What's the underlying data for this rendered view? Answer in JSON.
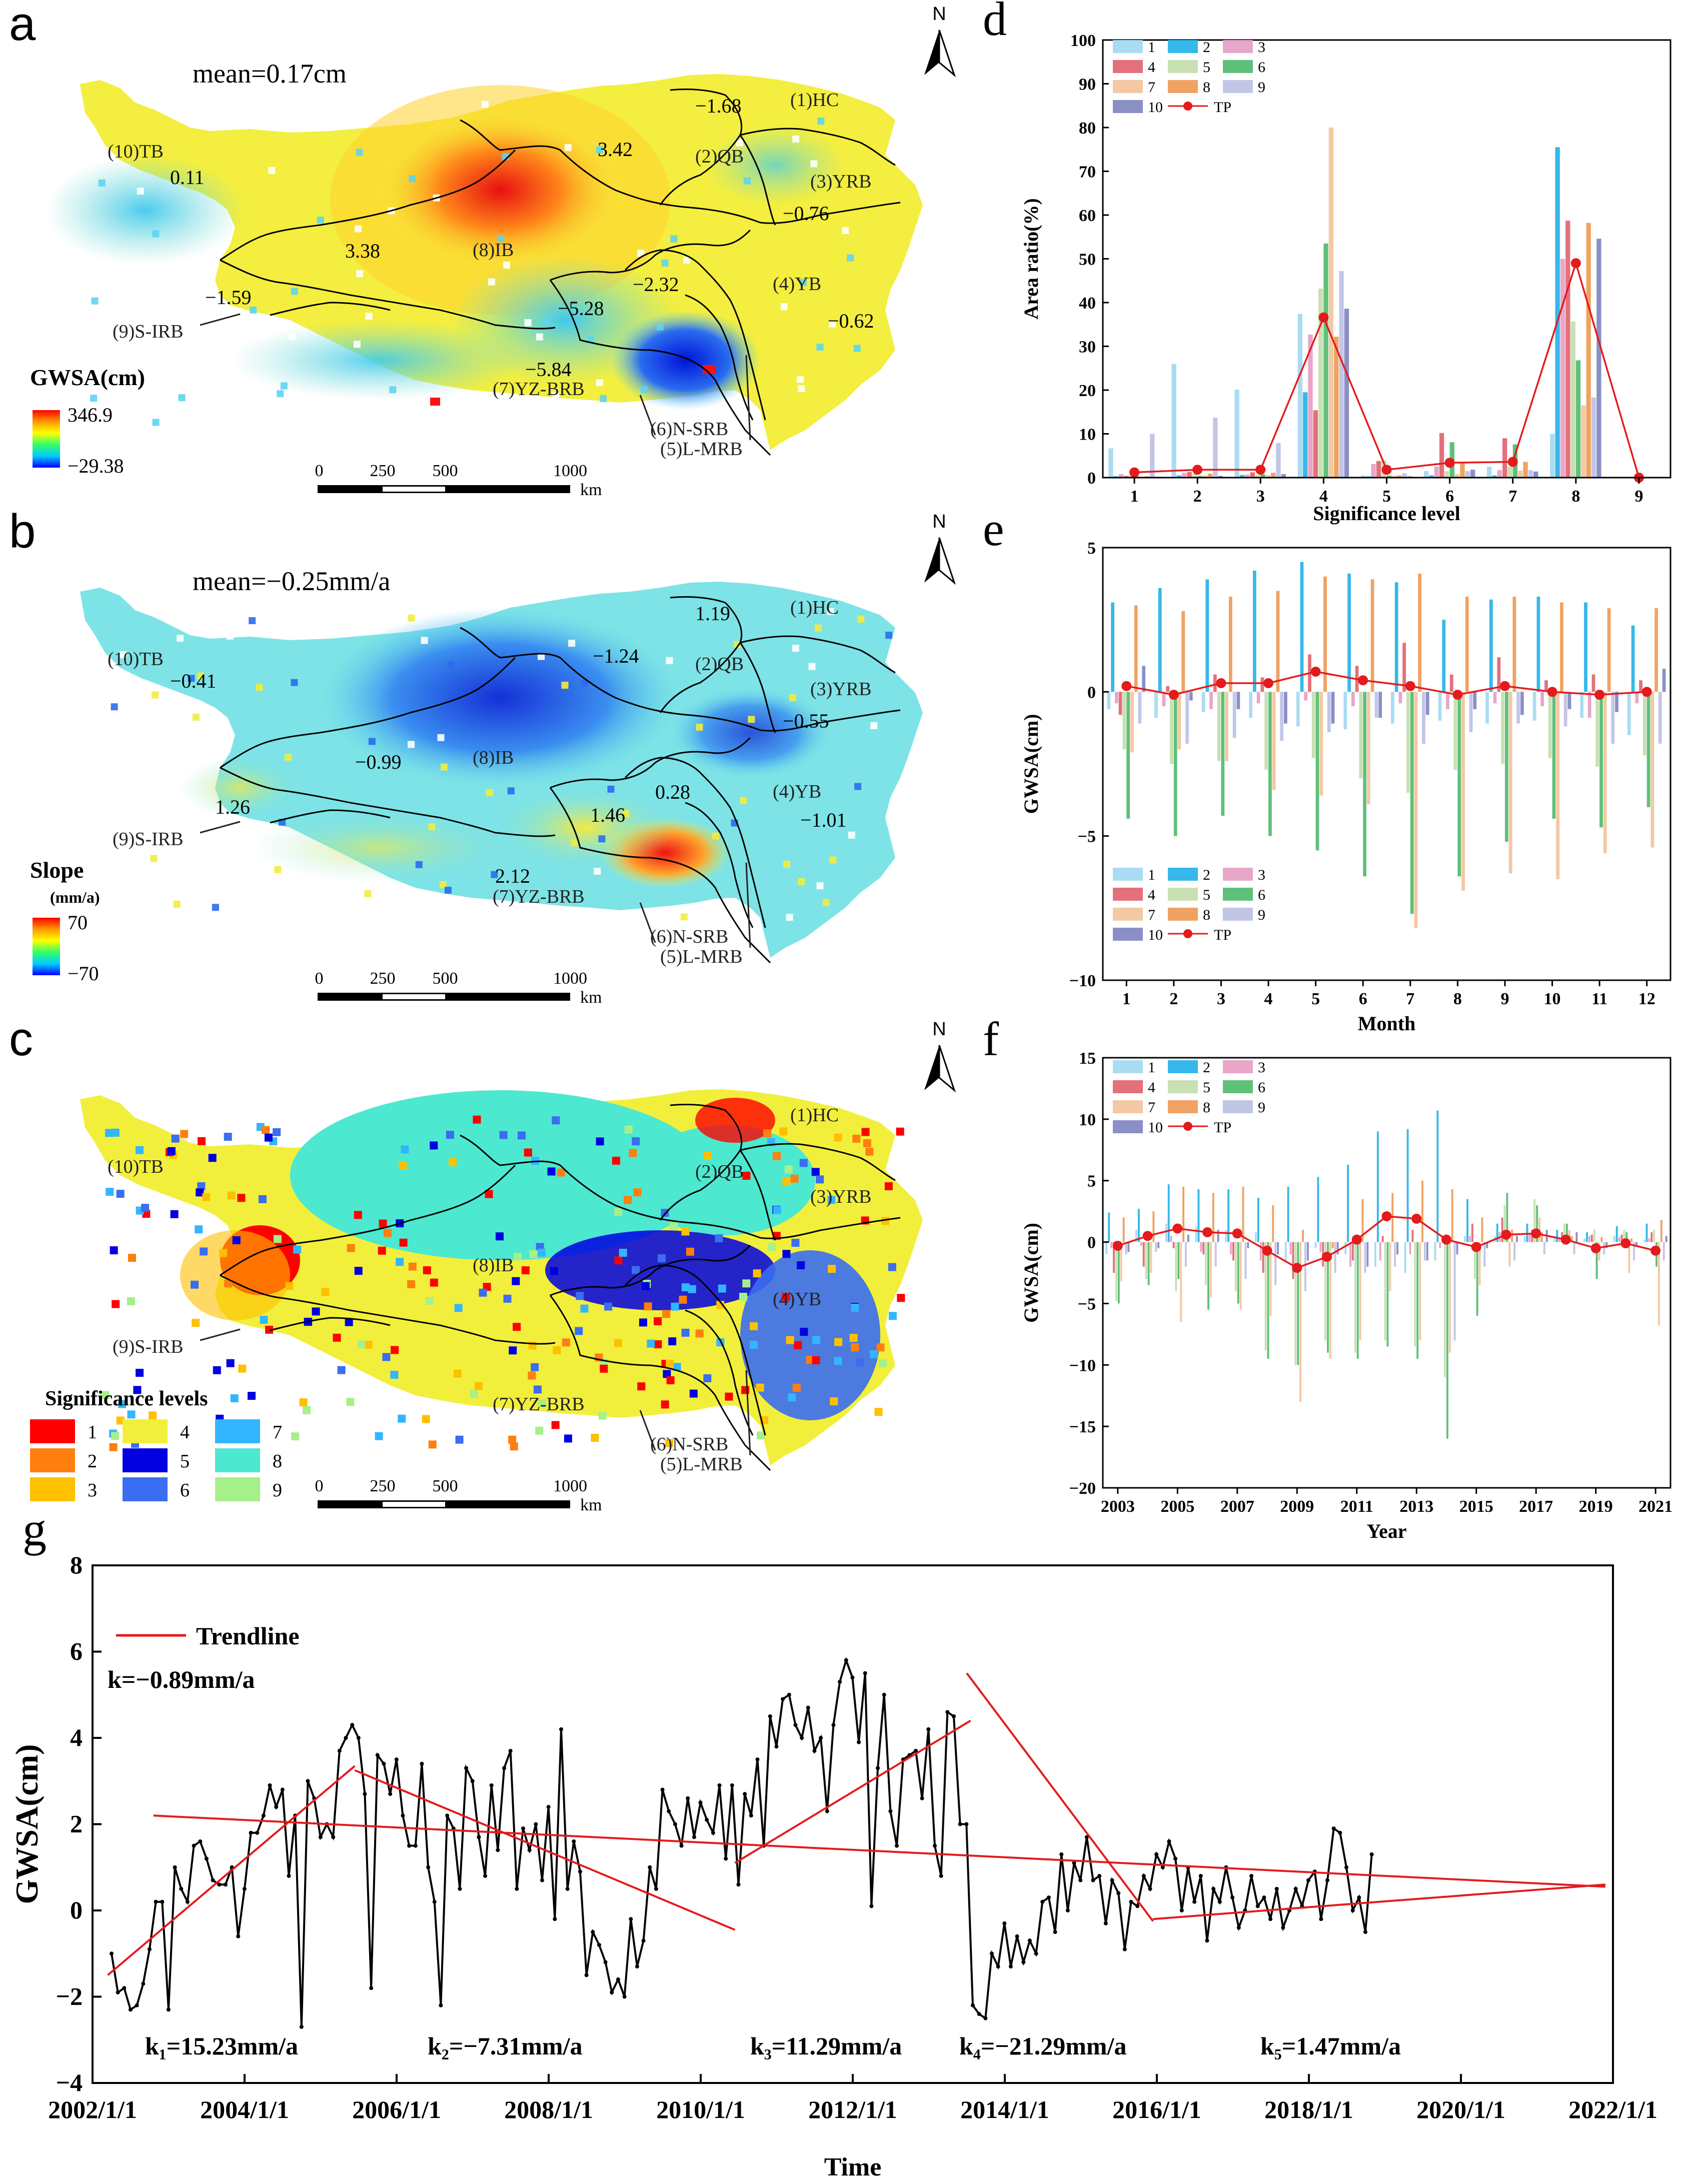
{
  "panels": {
    "a": {
      "letter": "a",
      "mean": "mean=0.17cm",
      "legend_title": "GWSA(cm)",
      "legend_max": "346.9",
      "legend_min": "−29.38",
      "values": [
        "−1.68",
        "0.11",
        "3.42",
        "3.38",
        "−0.76",
        "−1.59",
        "−2.32",
        "−5.28",
        "−0.62",
        "−5.84"
      ]
    },
    "b": {
      "letter": "b",
      "mean": "mean=−0.25mm/a",
      "legend_title": "Slope",
      "legend_unit": "(mm/a)",
      "legend_max": "70",
      "legend_min": "−70",
      "values": [
        "1.19",
        "−0.41",
        "−1.24",
        "−0.55",
        "−0.99",
        "1.26",
        "1.46",
        "0.28",
        "−1.01",
        "2.12"
      ]
    },
    "c": {
      "letter": "c",
      "legend_title": "Significance levels",
      "levels": [
        {
          "label": "1",
          "color": "#ff0000"
        },
        {
          "label": "2",
          "color": "#ff7f0e"
        },
        {
          "label": "3",
          "color": "#ffc000"
        },
        {
          "label": "4",
          "color": "#f2ef3c"
        },
        {
          "label": "5",
          "color": "#0000e0"
        },
        {
          "label": "6",
          "color": "#3a6df0"
        },
        {
          "label": "7",
          "color": "#33b5ff"
        },
        {
          "label": "8",
          "color": "#4de8d0"
        },
        {
          "label": "9",
          "color": "#a6f08a"
        }
      ]
    }
  },
  "map_common": {
    "north": "N",
    "scale_ticks": [
      "0",
      "250",
      "500",
      "1000"
    ],
    "scale_unit": "km",
    "regions": [
      "(1)HC",
      "(2)QB",
      "(3)YRB",
      "(4)YB",
      "(5)L-MRB",
      "(6)N-SRB",
      "(7)YZ-BRB",
      "(8)IB",
      "(9)S-IRB",
      "(10)TB"
    ]
  },
  "legend_series": [
    {
      "name": "1",
      "color": "#a9dcf2"
    },
    {
      "name": "2",
      "color": "#36b8ea"
    },
    {
      "name": "3",
      "color": "#e8a6c9"
    },
    {
      "name": "4",
      "color": "#e3707a"
    },
    {
      "name": "5",
      "color": "#c8e0b2"
    },
    {
      "name": "6",
      "color": "#5fc07a"
    },
    {
      "name": "7",
      "color": "#f3c8a3"
    },
    {
      "name": "8",
      "color": "#f0a262"
    },
    {
      "name": "9",
      "color": "#c2c6e6"
    },
    {
      "name": "10",
      "color": "#8a8fc6"
    },
    {
      "name": "TP",
      "color": "#e41a1c"
    }
  ],
  "chart_data": [
    {
      "id": "d",
      "type": "bar",
      "letter": "d",
      "xlabel": "Significance level",
      "ylabel": "Area ratio(%)",
      "categories": [
        "1",
        "2",
        "3",
        "4",
        "5",
        "6",
        "7",
        "8",
        "9"
      ],
      "ylim": [
        0,
        100
      ],
      "yticks": [
        "0",
        "10",
        "20",
        "30",
        "40",
        "50",
        "60",
        "70",
        "80",
        "90",
        "100"
      ],
      "series": [
        {
          "name": "1",
          "values": [
            6.7,
            26,
            20.1,
            37.4,
            0.5,
            1.5,
            2.5,
            10,
            0
          ]
        },
        {
          "name": "2",
          "values": [
            0.3,
            0.5,
            0.6,
            19.5,
            0.3,
            0.5,
            0.5,
            75.5,
            0
          ]
        },
        {
          "name": "3",
          "values": [
            0.8,
            1.1,
            0.7,
            32.7,
            3.1,
            2.5,
            1.7,
            50,
            0
          ]
        },
        {
          "name": "4",
          "values": [
            0.4,
            1.3,
            1.2,
            15.4,
            3.8,
            10.2,
            9.0,
            58.7,
            0
          ]
        },
        {
          "name": "5",
          "values": [
            0.4,
            0.8,
            0.6,
            43.2,
            4.0,
            1.5,
            2.5,
            35.7,
            0
          ]
        },
        {
          "name": "6",
          "values": [
            0.3,
            0.4,
            0.8,
            53.5,
            0.5,
            8.1,
            7.6,
            26.8,
            0
          ]
        },
        {
          "name": "7",
          "values": [
            0.2,
            0.5,
            0.6,
            80,
            0.4,
            0.8,
            1.6,
            16.5,
            0
          ]
        },
        {
          "name": "8",
          "values": [
            0.3,
            0.9,
            1.1,
            32.2,
            0.5,
            3.5,
            3.6,
            58.2,
            0
          ]
        },
        {
          "name": "9",
          "values": [
            10,
            13.7,
            7.9,
            47.2,
            1.0,
            1.5,
            1.7,
            18.3,
            0
          ]
        },
        {
          "name": "10",
          "values": [
            0.2,
            0.4,
            0.8,
            38.6,
            0.3,
            1.8,
            1.4,
            54.6,
            0
          ]
        }
      ],
      "line": {
        "name": "TP",
        "values": [
          1.2,
          1.8,
          1.8,
          36.6,
          1.8,
          3.4,
          3.6,
          49,
          0
        ]
      }
    },
    {
      "id": "e",
      "type": "bar",
      "letter": "e",
      "xlabel": "Month",
      "ylabel": "GWSA(cm)",
      "categories": [
        "1",
        "2",
        "3",
        "4",
        "5",
        "6",
        "7",
        "8",
        "9",
        "10",
        "11",
        "12"
      ],
      "ylim": [
        -10,
        5
      ],
      "yticks": [
        "−10",
        "−5",
        "0",
        "5"
      ],
      "series": [
        {
          "name": "1",
          "values": [
            -0.6,
            -0.9,
            -0.7,
            -0.9,
            -1.2,
            -1.3,
            -1.1,
            -1.0,
            -1.1,
            -1.0,
            -0.9,
            -1.5
          ]
        },
        {
          "name": "2",
          "values": [
            3.1,
            3.6,
            3.9,
            4.2,
            4.5,
            4.1,
            3.8,
            2.5,
            3.2,
            3.3,
            3.1,
            2.3
          ]
        },
        {
          "name": "3",
          "values": [
            -0.4,
            -0.5,
            -0.6,
            -0.4,
            -0.3,
            -0.5,
            -0.4,
            -0.6,
            -0.4,
            -0.5,
            -0.9,
            -0.4
          ]
        },
        {
          "name": "4",
          "values": [
            -0.8,
            0.2,
            0.6,
            0.5,
            1.3,
            0.9,
            1.7,
            0.6,
            1.2,
            0.4,
            0.6,
            0.4
          ]
        },
        {
          "name": "5",
          "values": [
            -2.0,
            -2.5,
            -2.4,
            -2.7,
            -2.3,
            -3.0,
            -3.5,
            -2.7,
            -2.5,
            -2.3,
            -2.6,
            -2.2
          ]
        },
        {
          "name": "6",
          "values": [
            -4.4,
            -5.0,
            -4.3,
            -5.0,
            -5.5,
            -6.4,
            -7.7,
            -6.4,
            -5.2,
            -4.4,
            -4.7,
            -4.0
          ]
        },
        {
          "name": "7",
          "values": [
            -2.1,
            -2.0,
            -2.4,
            -3.4,
            -3.6,
            -3.9,
            -8.2,
            -6.9,
            -6.3,
            -6.5,
            -5.6,
            -5.4
          ]
        },
        {
          "name": "8",
          "values": [
            3.0,
            2.8,
            3.3,
            3.5,
            4.0,
            3.9,
            4.1,
            3.3,
            3.3,
            3.1,
            2.9,
            2.9
          ]
        },
        {
          "name": "9",
          "values": [
            -1.1,
            -1.8,
            -1.6,
            -1.7,
            -1.4,
            -0.9,
            -1.8,
            -1.4,
            -1.1,
            -1.2,
            -1.8,
            -1.8
          ]
        },
        {
          "name": "10",
          "values": [
            0.9,
            -0.3,
            -0.6,
            -1.1,
            -1.1,
            -0.9,
            -0.8,
            -0.6,
            -0.8,
            -0.6,
            -0.7,
            0.8
          ]
        }
      ],
      "line": {
        "name": "TP",
        "values": [
          0.2,
          -0.1,
          0.3,
          0.3,
          0.7,
          0.4,
          0.2,
          -0.1,
          0.2,
          0.0,
          -0.1,
          0.0
        ]
      }
    },
    {
      "id": "f",
      "type": "bar",
      "letter": "f",
      "xlabel": "Year",
      "ylabel": "GWSA(cm)",
      "categories": [
        "2003",
        "2004",
        "2005",
        "2006",
        "2007",
        "2008",
        "2009",
        "2010",
        "2011",
        "2012",
        "2013",
        "2014",
        "2015",
        "2016",
        "2017",
        "2018",
        "2019",
        "2020",
        "2021"
      ],
      "xtick_labels": [
        "2003",
        "2005",
        "2007",
        "2009",
        "2011",
        "2013",
        "2015",
        "2017",
        "2019",
        "2021"
      ],
      "ylim": [
        -20,
        15
      ],
      "yticks": [
        "−20",
        "−15",
        "−10",
        "−5",
        "0",
        "5",
        "10",
        "15"
      ],
      "series": [
        {
          "name": "1",
          "values": [
            -1.0,
            1.0,
            1.5,
            1.3,
            1.0,
            0.8,
            -1.5,
            -0.5,
            -1.0,
            -2.0,
            -2.5,
            -1.5,
            0.5,
            0.5,
            0.5,
            0.4,
            0.3,
            0.5,
            0.2
          ]
        },
        {
          "name": "2",
          "values": [
            2.4,
            2.7,
            4.7,
            4.3,
            4.3,
            3.6,
            4.5,
            5.3,
            6.3,
            9.0,
            9.2,
            10.7,
            3.5,
            1.5,
            1.5,
            1.0,
            0.8,
            1.3,
            1.5
          ]
        },
        {
          "name": "3",
          "values": [
            -0.5,
            -0.3,
            0.5,
            -0.8,
            -1.0,
            -1.5,
            -1.0,
            -0.8,
            -2.0,
            -1.5,
            -1.0,
            -0.5,
            0.5,
            0.8,
            0.6,
            0.3,
            0.5,
            0.4,
            0.3
          ]
        },
        {
          "name": "4",
          "values": [
            -2.5,
            -2.0,
            -0.5,
            -1.0,
            -1.5,
            -2.5,
            -3.0,
            -2.0,
            -1.5,
            0.5,
            1.0,
            0.5,
            1.5,
            2.0,
            1.0,
            0.8,
            0.6,
            0.6,
            0.8
          ]
        },
        {
          "name": "5",
          "values": [
            -4.8,
            -3.0,
            -4.0,
            -3.5,
            -4.0,
            -8.8,
            -10.0,
            -8.0,
            -9.0,
            -8.0,
            -8.5,
            -11.0,
            -3.0,
            3.0,
            3.5,
            1.5,
            1.0,
            1.0,
            1.0
          ]
        },
        {
          "name": "6",
          "values": [
            -5.0,
            -3.5,
            -3.0,
            -5.5,
            -5.0,
            -9.5,
            -10.0,
            -9.0,
            -9.5,
            -8.5,
            -9.5,
            -16.0,
            -6.0,
            4.0,
            3.0,
            1.5,
            -3.0,
            0.8,
            -2.0
          ]
        },
        {
          "name": "7",
          "values": [
            -3.2,
            -2.5,
            -6.5,
            -4.5,
            -5.5,
            -6.0,
            -13.0,
            -9.5,
            -8.0,
            -4.0,
            -8.0,
            -9.0,
            -3.5,
            -2.0,
            2.0,
            1.0,
            -1.5,
            -2.5,
            -6.8
          ]
        },
        {
          "name": "8",
          "values": [
            2.0,
            2.5,
            4.5,
            4.0,
            4.5,
            3.0,
            1.0,
            -0.5,
            3.5,
            4.0,
            5.0,
            4.3,
            2.0,
            1.0,
            0.8,
            0.5,
            0.4,
            0.3,
            1.8
          ]
        },
        {
          "name": "9",
          "values": [
            -1.0,
            -0.8,
            -2.0,
            -2.0,
            -3.0,
            -3.5,
            -4.0,
            -2.5,
            -2.5,
            -2.0,
            -1.5,
            -8.0,
            -2.0,
            -1.5,
            -1.0,
            -1.0,
            -1.0,
            -1.5,
            -1.5
          ]
        },
        {
          "name": "10",
          "values": [
            -0.8,
            -0.5,
            0.6,
            1.0,
            -0.5,
            -1.0,
            -1.5,
            -1.0,
            -2.0,
            -1.0,
            -1.5,
            -1.0,
            -0.5,
            0.5,
            1.0,
            0.8,
            -0.5,
            -0.3,
            0.5
          ]
        }
      ],
      "line": {
        "name": "TP",
        "values": [
          -0.3,
          0.5,
          1.1,
          0.8,
          0.7,
          -0.7,
          -2.1,
          -1.2,
          0.2,
          2.1,
          1.9,
          0.2,
          -0.4,
          0.6,
          0.7,
          0.2,
          -0.5,
          -0.1,
          -0.7
        ]
      }
    },
    {
      "id": "g",
      "type": "line",
      "letter": "g",
      "xlabel": "Time",
      "ylabel": "GWSA(cm)",
      "xlim": [
        2002.0,
        2022.0
      ],
      "xtick_labels": [
        "2002/1/1",
        "2004/1/1",
        "2006/1/1",
        "2008/1/1",
        "2010/1/1",
        "2012/1/1",
        "2014/1/1",
        "2016/1/1",
        "2018/1/1",
        "2020/1/1",
        "2022/1/1"
      ],
      "ylim": [
        -4,
        8
      ],
      "yticks": [
        "−4",
        "−2",
        "0",
        "2",
        "4",
        "6",
        "8"
      ],
      "legend": "Trendline",
      "k_total": "k=−0.89mm/a",
      "series_x_start": 2002.25,
      "series_step": 0.0833,
      "series": [
        -1.0,
        -1.9,
        -1.8,
        -2.3,
        -2.2,
        -1.7,
        -0.9,
        0.2,
        0.2,
        -2.3,
        1.0,
        0.5,
        0.2,
        1.5,
        1.6,
        1.2,
        0.7,
        0.6,
        0.6,
        1.0,
        -0.6,
        0.5,
        1.8,
        1.8,
        2.2,
        2.9,
        2.4,
        2.8,
        0.8,
        2.2,
        -2.7,
        3.0,
        2.6,
        1.7,
        2.0,
        1.7,
        3.7,
        4.0,
        4.3,
        4.0,
        2.7,
        -1.8,
        3.6,
        3.4,
        2.7,
        3.5,
        2.2,
        1.5,
        1.5,
        3.4,
        1.0,
        0.2,
        -2.2,
        2.2,
        1.9,
        0.5,
        3.3,
        3.0,
        1.7,
        0.8,
        2.9,
        1.4,
        3.3,
        3.7,
        0.5,
        1.9,
        1.4,
        2.0,
        0.7,
        2.4,
        -0.2,
        4.2,
        0.5,
        1.6,
        0.9,
        -1.5,
        -0.5,
        -0.8,
        -1.2,
        -1.9,
        -1.6,
        -2.0,
        -0.2,
        -1.3,
        -0.7,
        1.0,
        0.5,
        2.8,
        2.3,
        2.0,
        1.5,
        2.6,
        1.7,
        2.5,
        2.1,
        1.8,
        2.9,
        1.2,
        2.9,
        0.6,
        2.7,
        2.2,
        3.5,
        1.5,
        4.5,
        3.8,
        4.9,
        5.0,
        4.3,
        4.0,
        4.7,
        3.7,
        4.0,
        2.3,
        4.3,
        5.3,
        5.8,
        5.4,
        3.9,
        5.5,
        0.1,
        3.3,
        5.0,
        2.3,
        1.5,
        3.5,
        3.6,
        3.7,
        2.6,
        4.2,
        1.5,
        0.8,
        4.6,
        4.5,
        2.0,
        2.0,
        -2.2,
        -2.4,
        -2.5,
        -1.0,
        -1.3,
        -0.3,
        -1.3,
        -0.6,
        -1.2,
        -0.7,
        -1.0,
        0.2,
        0.3,
        -0.5,
        1.3,
        0.0,
        1.1,
        0.7,
        1.7,
        0.7,
        0.8,
        -0.3,
        0.7,
        0.4,
        -0.9,
        0.2,
        0.1,
        0.8,
        0.5,
        1.3,
        1.0,
        1.6,
        1.2,
        0.0,
        1.0,
        0.2,
        0.8,
        -0.7,
        0.5,
        0.2,
        1.0,
        0.3,
        -0.4,
        0.0,
        0.8,
        0.1,
        0.3,
        -0.2,
        0.5,
        -0.4,
        0.0,
        0.5,
        0.1,
        0.7,
        0.9,
        -0.2,
        0.7,
        1.9,
        1.8,
        1.0,
        0.0,
        0.3,
        -0.5,
        1.3
      ],
      "trend_overall": {
        "x": [
          2002.8,
          2021.9
        ],
        "y": [
          2.2,
          0.55
        ]
      },
      "segments": [
        {
          "label": "k₁=15.23mm/a",
          "x": [
            2002.2,
            2005.45
          ],
          "y": [
            -1.5,
            3.35
          ]
        },
        {
          "label": "k₂=−7.31mm/a",
          "x": [
            2005.45,
            2010.45
          ],
          "y": [
            3.25,
            -0.45
          ]
        },
        {
          "label": "k₃=11.29mm/a",
          "x": [
            2010.45,
            2013.55
          ],
          "y": [
            1.1,
            4.4
          ]
        },
        {
          "label": "k₄=−21.29mm/a",
          "x": [
            2013.5,
            2015.95
          ],
          "y": [
            5.5,
            -0.25
          ]
        },
        {
          "label": "k₅=1.47mm/a",
          "x": [
            2015.95,
            2021.9
          ],
          "y": [
            -0.2,
            0.6
          ]
        }
      ]
    }
  ]
}
